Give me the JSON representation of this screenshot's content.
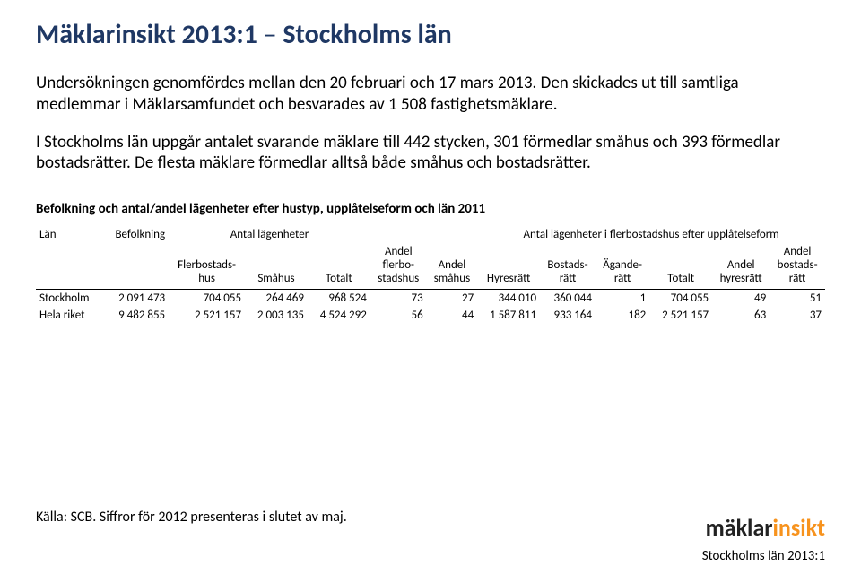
{
  "title_part1": "Mäklarinsikt 2013:1 ",
  "title_dash": "–",
  "title_part2": " Stockholms län",
  "para1": "Undersökningen genomfördes mellan den 20 februari och 17 mars 2013. Den skickades ut till samtliga medlemmar i Mäklarsamfundet och besvarades av 1 508 fastighetsmäklare.",
  "para2": "I Stockholms län uppgår antalet svarande mäklare till 442 stycken, 301 förmedlar småhus och 393 förmedlar bostadsrätter. De flesta mäklare förmedlar alltså både småhus och bostadsrätter.",
  "subhead": "Befolkning och antal/andel lägenheter efter hustyp, upplåtelseform och län 2011",
  "table": {
    "header_row1": {
      "lan": "Län",
      "befolkning": "Befolkning",
      "antal_lagenheter": "Antal lägenheter",
      "antal_flerbostad": "Antal lägenheter i flerbostadshus efter upplåtelseform"
    },
    "header_row2": {
      "flerbostadshus": "Flerbostads-\nhus",
      "smahus": "Småhus",
      "totalt": "Totalt",
      "andel_flerbo": "Andel\nflerbo-\nstadshus",
      "andel_smahus": "Andel\nsmåhus",
      "hyresratt": "Hyresrätt",
      "bostadsratt": "Bostads-\nrätt",
      "aganderatt": "Ägande-\nrätt",
      "totalt2": "Totalt",
      "andel_hyresratt": "Andel\nhyresrätt",
      "andel_bostadsratt": "Andel\nbostads-\nrätt"
    },
    "rows": [
      {
        "lan": "Stockholm",
        "befolkning": "2 091 473",
        "flerbostadshus": "704 055",
        "smahus": "264 469",
        "totalt": "968 524",
        "andel_flerbo": "73",
        "andel_smahus": "27",
        "hyresratt": "344 010",
        "bostadsratt": "360 044",
        "aganderatt": "1",
        "totalt2": "704 055",
        "andel_hyresratt": "49",
        "andel_bostadsratt": "51"
      },
      {
        "lan": "Hela riket",
        "befolkning": "9 482 855",
        "flerbostadshus": "2 521 157",
        "smahus": "2 003 135",
        "totalt": "4 524 292",
        "andel_flerbo": "56",
        "andel_smahus": "44",
        "hyresratt": "1 587 811",
        "bostadsratt": "933 164",
        "aganderatt": "182",
        "totalt2": "2 521 157",
        "andel_hyresratt": "63",
        "andel_bostadsratt": "37"
      }
    ]
  },
  "source": "Källa: SCB. Siffror för 2012 presenteras i slutet av maj.",
  "logo": {
    "part1": "mäklar",
    "part2": "insikt"
  },
  "footer": "Stockholms län 2013:1"
}
